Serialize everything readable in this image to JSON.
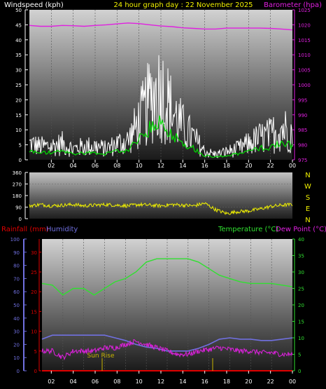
{
  "header": {
    "left_label": "Windspeed (kph)",
    "center_label": "24 hour graph day : 22 November 2025",
    "right_label": "Barometer (hpa)"
  },
  "x_ticks": [
    "02",
    "04",
    "06",
    "08",
    "10",
    "12",
    "14",
    "16",
    "18",
    "20",
    "22",
    "00"
  ],
  "wind_panel": {
    "y_left_ticks": [
      "0",
      "5",
      "10",
      "15",
      "20",
      "25",
      "30",
      "35",
      "40",
      "45",
      "50"
    ],
    "y_right_ticks": [
      "975",
      "980",
      "985",
      "990",
      "995",
      "1000",
      "1005",
      "1010",
      "1015",
      "1020",
      "1025"
    ]
  },
  "dir_panel": {
    "y_ticks": [
      "0",
      "90",
      "180",
      "270",
      "360"
    ],
    "compass": [
      "N",
      "W",
      "S",
      "E",
      "N"
    ]
  },
  "lower_header": {
    "rainfall": "Rainfall (mm)",
    "humidity": "Humidity",
    "temperature": "Temperature (°C)",
    "dewpoint": "Dew Point (°C)"
  },
  "lower_panel": {
    "humidity_ticks": [
      "0",
      "10",
      "20",
      "30",
      "40",
      "50",
      "60",
      "70",
      "80",
      "90",
      "100"
    ],
    "rain_ticks": [
      "0",
      "5",
      "10",
      "15",
      "20",
      "25",
      "30"
    ],
    "temp_ticks": [
      "0",
      "5",
      "10",
      "15",
      "20",
      "25",
      "30",
      "35",
      "40"
    ],
    "sunrise_label": "Sun Rise"
  },
  "colors": {
    "wind": "#ffffff",
    "gust_avg": "#00dd00",
    "barometer": "#e020e0",
    "direction": "#f0f000",
    "rainfall": "#e00000",
    "humidity": "#7070e0",
    "temperature": "#30e030",
    "dewpoint": "#e020e0",
    "sun": "#c8b400"
  },
  "chart_data": [
    {
      "type": "line",
      "title": "24 hour graph day : 22 November 2025",
      "x": [
        0,
        1,
        2,
        3,
        4,
        5,
        6,
        7,
        8,
        9,
        10,
        11,
        12,
        13,
        14,
        15,
        16,
        17,
        18,
        19,
        20,
        21,
        22,
        23,
        24
      ],
      "series": [
        {
          "name": "Windspeed (kph)",
          "axis": "left",
          "values": [
            6,
            5,
            5,
            6,
            4,
            5,
            5,
            4,
            6,
            7,
            14,
            22,
            26,
            18,
            12,
            8,
            3,
            2,
            3,
            4,
            6,
            8,
            9,
            12,
            10
          ]
        },
        {
          "name": "Barometer (hpa)",
          "axis": "right",
          "values": [
            1019.8,
            1019.5,
            1019.5,
            1019.8,
            1019.7,
            1019.5,
            1019.8,
            1020.0,
            1020.3,
            1020.6,
            1020.4,
            1020.0,
            1019.6,
            1019.4,
            1019.0,
            1018.8,
            1018.6,
            1018.6,
            1018.9,
            1018.9,
            1018.9,
            1018.9,
            1018.8,
            1018.6,
            1018.3
          ]
        }
      ],
      "ylabel": "Windspeed (kph)",
      "ylim": [
        0,
        50
      ],
      "y2label": "Barometer (hpa)",
      "y2lim": [
        975,
        1025
      ]
    },
    {
      "type": "line",
      "x": [
        0,
        1,
        2,
        3,
        4,
        5,
        6,
        7,
        8,
        9,
        10,
        11,
        12,
        13,
        14,
        15,
        16,
        17,
        18,
        19,
        20,
        21,
        22,
        23,
        24
      ],
      "series": [
        {
          "name": "Wind direction",
          "values": [
            100,
            110,
            100,
            105,
            110,
            100,
            105,
            110,
            105,
            100,
            110,
            105,
            100,
            110,
            105,
            100,
            120,
            70,
            40,
            55,
            60,
            75,
            95,
            105,
            110
          ]
        }
      ],
      "ylim": [
        0,
        360
      ]
    },
    {
      "type": "line",
      "x": [
        0,
        1,
        2,
        3,
        4,
        5,
        6,
        7,
        8,
        9,
        10,
        11,
        12,
        13,
        14,
        15,
        16,
        17,
        18,
        19,
        20,
        21,
        22,
        23,
        24
      ],
      "series": [
        {
          "name": "Temperature (°C)",
          "axis": "right",
          "values": [
            26.5,
            26,
            23,
            25,
            25,
            23,
            25,
            27,
            28,
            30,
            33,
            34,
            34,
            34,
            34,
            33,
            31,
            29,
            28,
            27,
            26.5,
            26.5,
            26.5,
            26,
            25.5
          ]
        },
        {
          "name": "Dew Point (°C)",
          "axis": "right",
          "values": [
            6,
            6,
            4,
            6,
            6,
            6,
            7,
            7,
            8,
            9,
            8,
            7,
            6,
            5,
            5,
            6,
            6.5,
            7,
            6.5,
            6,
            6,
            5.5,
            5.5,
            5,
            5
          ]
        },
        {
          "name": "Humidity",
          "axis": "left",
          "values": [
            24,
            27,
            27,
            27,
            27,
            27,
            27,
            25,
            23,
            20,
            18,
            17,
            15,
            15,
            15,
            17,
            20,
            24,
            25,
            24,
            24,
            23,
            23,
            24,
            25
          ]
        },
        {
          "name": "Rainfall (mm)",
          "axis": "left2",
          "values": [
            0,
            0,
            0,
            0,
            0,
            0,
            0,
            0,
            0,
            0,
            0,
            0,
            0,
            0,
            0,
            0,
            0,
            0,
            0,
            0,
            0,
            0,
            0,
            0,
            0
          ]
        }
      ],
      "ylim": [
        0,
        100
      ],
      "y2lim": [
        0,
        40
      ],
      "annotations": [
        "Sun Rise"
      ]
    }
  ]
}
